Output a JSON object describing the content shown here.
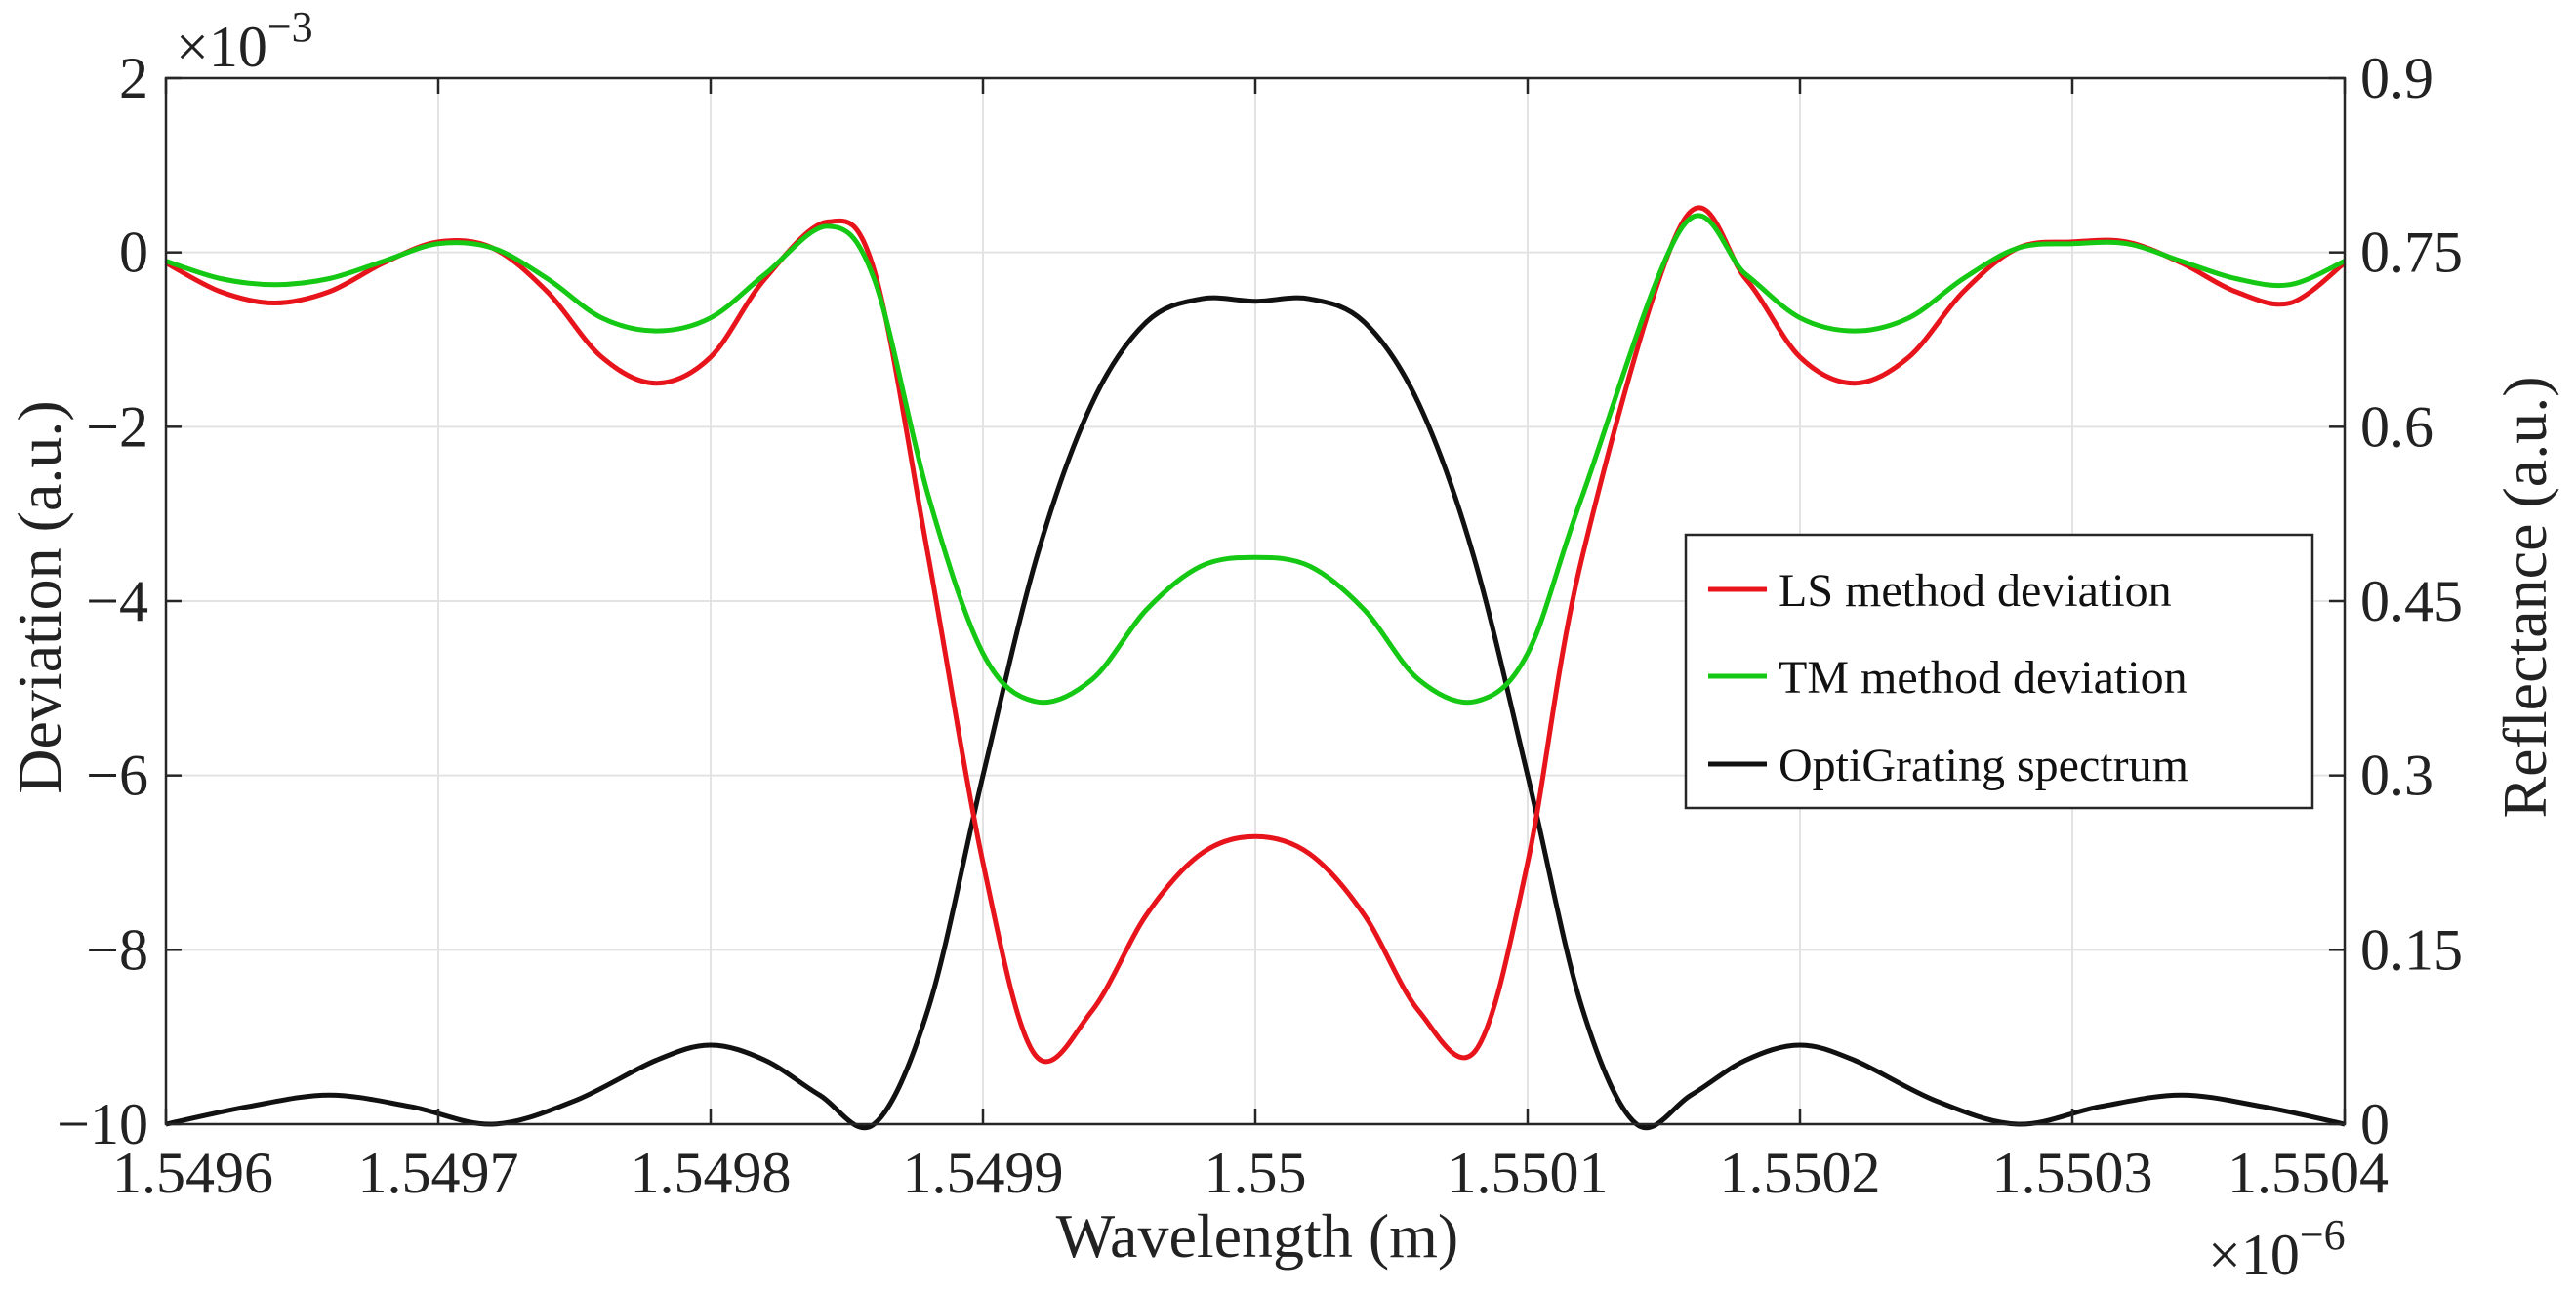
{
  "chart_data": {
    "type": "line",
    "xlabel": "Wavelength (m)",
    "x_exponent": "×10",
    "x_exponent_power": "−6",
    "ylabel_left": "Deviation (a.u.)",
    "y_left_exponent": "×10",
    "y_left_exponent_power": "−3",
    "ylabel_right": "Reflectance (a.u.)",
    "xlim": [
      1.5496,
      1.5504
    ],
    "ylim_left": [
      -10,
      2
    ],
    "ylim_right": [
      0,
      0.9
    ],
    "grid": true,
    "legend_position": "center-right",
    "x_ticks": [
      {
        "value": 1.5496,
        "label": "1.5496"
      },
      {
        "value": 1.5497,
        "label": "1.5497"
      },
      {
        "value": 1.5498,
        "label": "1.5498"
      },
      {
        "value": 1.5499,
        "label": "1.5499"
      },
      {
        "value": 1.55,
        "label": "1.55"
      },
      {
        "value": 1.5501,
        "label": "1.5501"
      },
      {
        "value": 1.5502,
        "label": "1.5502"
      },
      {
        "value": 1.5503,
        "label": "1.5503"
      },
      {
        "value": 1.5504,
        "label": "1.5504"
      }
    ],
    "y_left_ticks": [
      {
        "value": 2,
        "label": "2"
      },
      {
        "value": 0,
        "label": "0"
      },
      {
        "value": -2,
        "label": "−2"
      },
      {
        "value": -4,
        "label": "−4"
      },
      {
        "value": -6,
        "label": "−6"
      },
      {
        "value": -8,
        "label": "−8"
      },
      {
        "value": -10,
        "label": "−10"
      }
    ],
    "y_right_ticks": [
      {
        "value": 0.9,
        "label": "0.9"
      },
      {
        "value": 0.75,
        "label": "0.75"
      },
      {
        "value": 0.6,
        "label": "0.6"
      },
      {
        "value": 0.45,
        "label": "0.45"
      },
      {
        "value": 0.3,
        "label": "0.3"
      },
      {
        "value": 0.15,
        "label": "0.15"
      },
      {
        "value": 0,
        "label": "0"
      }
    ],
    "series": [
      {
        "name": "LS method deviation",
        "axis": "left",
        "color": "#e8141c",
        "x": [
          1.5496,
          1.54962,
          1.54964,
          1.54966,
          1.54968,
          1.5497,
          1.54972,
          1.54974,
          1.54976,
          1.54978,
          1.5498,
          1.54982,
          1.549843,
          1.54986,
          1.54988,
          1.5499,
          1.549919,
          1.54994,
          1.54996,
          1.54998,
          1.55,
          1.55002,
          1.55004,
          1.55006,
          1.550081,
          1.5501,
          1.55012,
          1.550157,
          1.55018,
          1.5502,
          1.55022,
          1.55024,
          1.55026,
          1.55028,
          1.5503,
          1.55032,
          1.55034,
          1.55036,
          1.55038,
          1.5504
        ],
        "y": [
          -0.12,
          -0.45,
          -0.58,
          -0.45,
          -0.12,
          0.12,
          0.05,
          -0.45,
          -1.2,
          -1.5,
          -1.2,
          -0.3,
          0.35,
          -0.2,
          -3.5,
          -7.0,
          -9.2,
          -8.7,
          -7.6,
          -6.9,
          -6.7,
          -6.9,
          -7.6,
          -8.7,
          -9.15,
          -7.0,
          -3.5,
          0.35,
          -0.3,
          -1.2,
          -1.5,
          -1.2,
          -0.45,
          0.05,
          0.12,
          0.12,
          -0.12,
          -0.45,
          -0.58,
          -0.12
        ]
      },
      {
        "name": "TM method deviation",
        "axis": "left",
        "color": "#14c814",
        "x": [
          1.5496,
          1.54962,
          1.54964,
          1.54966,
          1.54968,
          1.5497,
          1.54972,
          1.54974,
          1.54976,
          1.54978,
          1.5498,
          1.54982,
          1.549843,
          1.54986,
          1.54988,
          1.5499,
          1.549919,
          1.54994,
          1.54996,
          1.54998,
          1.55,
          1.55002,
          1.55004,
          1.55006,
          1.550081,
          1.5501,
          1.55012,
          1.550157,
          1.55018,
          1.5502,
          1.55022,
          1.55024,
          1.55026,
          1.55028,
          1.5503,
          1.55032,
          1.55034,
          1.55036,
          1.55038,
          1.5504
        ],
        "y": [
          -0.1,
          -0.3,
          -0.37,
          -0.3,
          -0.1,
          0.1,
          0.05,
          -0.3,
          -0.75,
          -0.9,
          -0.75,
          -0.25,
          0.3,
          -0.3,
          -2.8,
          -4.6,
          -5.15,
          -4.9,
          -4.1,
          -3.6,
          -3.5,
          -3.6,
          -4.1,
          -4.9,
          -5.15,
          -4.6,
          -2.8,
          0.3,
          -0.25,
          -0.75,
          -0.9,
          -0.75,
          -0.3,
          0.05,
          0.1,
          0.1,
          -0.1,
          -0.3,
          -0.37,
          -0.1
        ]
      },
      {
        "name": "OptiGrating spectrum",
        "axis": "right",
        "color": "#111111",
        "x": [
          1.5496,
          1.54963,
          1.54966,
          1.54969,
          1.54972,
          1.54975,
          1.54978,
          1.5498,
          1.54982,
          1.54984,
          1.54986,
          1.54988,
          1.5499,
          1.54992,
          1.54994,
          1.54996,
          1.54998,
          1.55,
          1.55002,
          1.55004,
          1.55006,
          1.55008,
          1.5501,
          1.55012,
          1.55014,
          1.55016,
          1.55018,
          1.5502,
          1.55022,
          1.55025,
          1.55028,
          1.55031,
          1.55034,
          1.55037,
          1.5504
        ],
        "y": [
          0.0,
          0.015,
          0.025,
          0.015,
          0.0,
          0.02,
          0.055,
          0.068,
          0.055,
          0.025,
          0.0,
          0.1,
          0.3,
          0.49,
          0.62,
          0.69,
          0.71,
          0.708,
          0.71,
          0.69,
          0.62,
          0.49,
          0.3,
          0.1,
          0.0,
          0.025,
          0.055,
          0.068,
          0.055,
          0.02,
          0.0,
          0.015,
          0.025,
          0.015,
          0.0
        ]
      }
    ]
  }
}
